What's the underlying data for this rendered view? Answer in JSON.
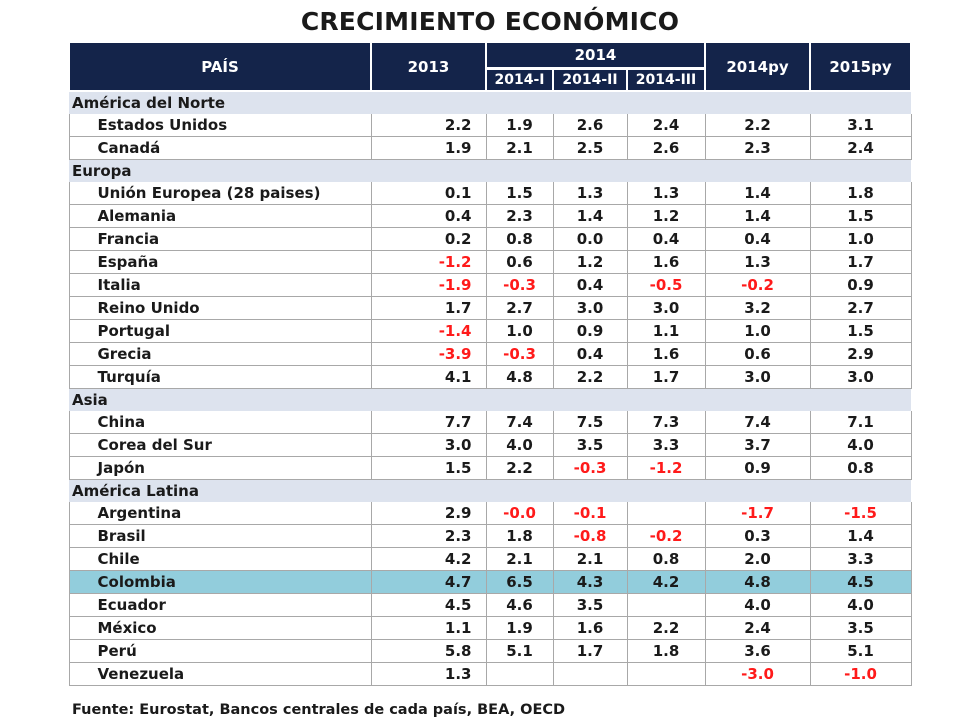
{
  "title": "CRECIMIENTO ECONÓMICO",
  "header": {
    "country": "PAÍS",
    "y2013": "2013",
    "y2014": "2014",
    "q1": "2014-I",
    "q2": "2014-II",
    "q3": "2014-III",
    "py2014": "2014py",
    "py2015": "2015py"
  },
  "sections": [
    {
      "name": "América del Norte",
      "rows": [
        {
          "country": "Estados Unidos",
          "v": [
            "2.2",
            "1.9",
            "2.6",
            "2.4",
            "2.2",
            "3.1"
          ]
        },
        {
          "country": "Canadá",
          "v": [
            "1.9",
            "2.1",
            "2.5",
            "2.6",
            "2.3",
            "2.4"
          ]
        }
      ]
    },
    {
      "name": "Europa",
      "rows": [
        {
          "country": "Unión Europea (28 paises)",
          "v": [
            "0.1",
            "1.5",
            "1.3",
            "1.3",
            "1.4",
            "1.8"
          ]
        },
        {
          "country": "Alemania",
          "v": [
            "0.4",
            "2.3",
            "1.4",
            "1.2",
            "1.4",
            "1.5"
          ]
        },
        {
          "country": "Francia",
          "v": [
            "0.2",
            "0.8",
            "0.0",
            "0.4",
            "0.4",
            "1.0"
          ]
        },
        {
          "country": "España",
          "v": [
            "-1.2",
            "0.6",
            "1.2",
            "1.6",
            "1.3",
            "1.7"
          ]
        },
        {
          "country": "Italia",
          "v": [
            "-1.9",
            "-0.3",
            "0.4",
            "-0.5",
            "-0.2",
            "0.9"
          ]
        },
        {
          "country": "Reino Unido",
          "v": [
            "1.7",
            "2.7",
            "3.0",
            "3.0",
            "3.2",
            "2.7"
          ]
        },
        {
          "country": "Portugal",
          "v": [
            "-1.4",
            "1.0",
            "0.9",
            "1.1",
            "1.0",
            "1.5"
          ]
        },
        {
          "country": "Grecia",
          "v": [
            "-3.9",
            "-0.3",
            "0.4",
            "1.6",
            "0.6",
            "2.9"
          ]
        },
        {
          "country": "Turquía",
          "v": [
            "4.1",
            "4.8",
            "2.2",
            "1.7",
            "3.0",
            "3.0"
          ]
        }
      ]
    },
    {
      "name": "Asia",
      "rows": [
        {
          "country": "China",
          "v": [
            "7.7",
            "7.4",
            "7.5",
            "7.3",
            "7.4",
            "7.1"
          ]
        },
        {
          "country": "Corea del Sur",
          "v": [
            "3.0",
            "4.0",
            "3.5",
            "3.3",
            "3.7",
            "4.0"
          ]
        },
        {
          "country": "Japón",
          "v": [
            "1.5",
            "2.2",
            "-0.3",
            "-1.2",
            "0.9",
            "0.8"
          ]
        }
      ]
    },
    {
      "name": "América Latina",
      "rows": [
        {
          "country": "Argentina",
          "v": [
            "2.9",
            "-0.0",
            "-0.1",
            "",
            "-1.7",
            "-1.5"
          ]
        },
        {
          "country": "Brasil",
          "v": [
            "2.3",
            "1.8",
            "-0.8",
            "-0.2",
            "0.3",
            "1.4"
          ]
        },
        {
          "country": "Chile",
          "v": [
            "4.2",
            "2.1",
            "2.1",
            "0.8",
            "2.0",
            "3.3"
          ]
        },
        {
          "country": "Colombia",
          "v": [
            "4.7",
            "6.5",
            "4.3",
            "4.2",
            "4.8",
            "4.5"
          ],
          "highlight": true
        },
        {
          "country": "Ecuador",
          "v": [
            "4.5",
            "4.6",
            "3.5",
            "",
            "4.0",
            "4.0"
          ]
        },
        {
          "country": "México",
          "v": [
            "1.1",
            "1.9",
            "1.6",
            "2.2",
            "2.4",
            "3.5"
          ]
        },
        {
          "country": "Perú",
          "v": [
            "5.8",
            "5.1",
            "1.7",
            "1.8",
            "3.6",
            "5.1"
          ]
        },
        {
          "country": "Venezuela",
          "v": [
            "1.3",
            "",
            "",
            "",
            "-3.0",
            "-1.0"
          ]
        }
      ]
    }
  ],
  "source": "Fuente: Eurostat, Bancos centrales de cada país, BEA, OECD",
  "colors": {
    "header_bg": "#14244a",
    "section_bg": "#dde3ee",
    "highlight_bg": "#92cddc",
    "negative": "#ff1a1a"
  }
}
